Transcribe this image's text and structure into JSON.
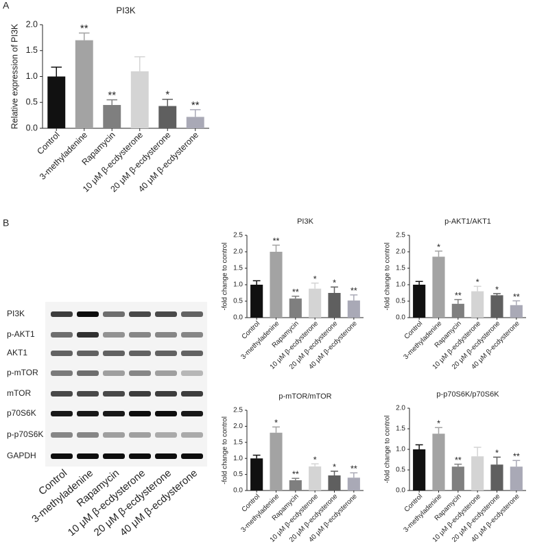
{
  "panels": [
    "A",
    "B"
  ],
  "blot": {
    "rows": [
      "PI3K",
      "p-AKT1",
      "AKT1",
      "p-mTOR",
      "mTOR",
      "p70S6K",
      "p-p70S6K",
      "GAPDH"
    ],
    "lanes": [
      "Control",
      "3-methyladenine",
      "Rapamycin",
      "10 μM β-ecdysterone",
      "20 μM β-ecdysterone",
      "40 μM β-ecdysterone"
    ]
  },
  "chart_data": [
    {
      "type": "bar",
      "title": "PI3K",
      "ylabel": "Relative expression of PI3K",
      "categories": [
        "Control",
        "3-methyladenine",
        "Rapamycin",
        "10 μM β-ecdysterone",
        "20 μM β-ecdysterone",
        "40 μM β-ecdysterone"
      ],
      "values": [
        1.0,
        1.7,
        0.45,
        1.1,
        0.43,
        0.22
      ],
      "errors": [
        0.18,
        0.14,
        0.1,
        0.28,
        0.13,
        0.14
      ],
      "significance": [
        null,
        "**",
        "**",
        null,
        "*",
        "**"
      ],
      "colors": [
        "#111111",
        "#a3a3a3",
        "#7f7f7f",
        "#d4d4d4",
        "#5f5f5f",
        "#a9a9b6"
      ],
      "ylim": [
        0,
        2.0
      ],
      "yticks": [
        {
          "value": 0,
          "label": "0.0"
        },
        {
          "value": 0.5,
          "label": "0.5"
        },
        {
          "value": 1.0,
          "label": "1.0"
        },
        {
          "value": 1.5,
          "label": "1.5"
        },
        {
          "value": 2.0,
          "label": "2.0"
        }
      ]
    },
    {
      "type": "bar",
      "title": "PI3K",
      "ylabel": "-fold change to control",
      "categories": [
        "Control",
        "3-methyladenine",
        "Rapamycin",
        "10 μM β-ecdysterone",
        "20 μM β-ecdysterone",
        "40 μM β-ecdysterone"
      ],
      "values": [
        1.0,
        2.0,
        0.58,
        0.88,
        0.75,
        0.52
      ],
      "errors": [
        0.12,
        0.2,
        0.07,
        0.17,
        0.18,
        0.17
      ],
      "significance": [
        null,
        "**",
        "**",
        "*",
        "*",
        "**"
      ],
      "colors": [
        "#111111",
        "#a3a3a3",
        "#7f7f7f",
        "#d4d4d4",
        "#5f5f5f",
        "#a9a9b6"
      ],
      "ylim": [
        0,
        2.5
      ],
      "yticks": [
        {
          "value": 0,
          "label": "0.0"
        },
        {
          "value": 0.5,
          "label": "0.5"
        },
        {
          "value": 1.0,
          "label": "1.0"
        },
        {
          "value": 1.5,
          "label": "1.5"
        },
        {
          "value": 2.0,
          "label": "2.0"
        },
        {
          "value": 2.5,
          "label": "2.5"
        }
      ]
    },
    {
      "type": "bar",
      "title": "p-AKT1/AKT1",
      "ylabel": "-fold change to control",
      "categories": [
        "Control",
        "3-methyladenine",
        "Rapamycin",
        "10 μM β-ecdysterone",
        "20 μM β-ecdysterone",
        "40 μM β-ecdysterone"
      ],
      "values": [
        1.0,
        1.85,
        0.42,
        0.8,
        0.68,
        0.38
      ],
      "errors": [
        0.1,
        0.17,
        0.13,
        0.15,
        0.05,
        0.13
      ],
      "significance": [
        null,
        "*",
        "**",
        "*",
        "*",
        "**"
      ],
      "colors": [
        "#111111",
        "#a3a3a3",
        "#7f7f7f",
        "#d4d4d4",
        "#5f5f5f",
        "#a9a9b6"
      ],
      "ylim": [
        0,
        2.5
      ],
      "yticks": [
        {
          "value": 0,
          "label": "0.0"
        },
        {
          "value": 0.5,
          "label": "0.5"
        },
        {
          "value": 1.0,
          "label": "1.0"
        },
        {
          "value": 1.5,
          "label": "1.5"
        },
        {
          "value": 2.0,
          "label": "2.0"
        },
        {
          "value": 2.5,
          "label": "2.5"
        }
      ]
    },
    {
      "type": "bar",
      "title": "p-mTOR/mTOR",
      "ylabel": "-fold change to control",
      "categories": [
        "Control",
        "3-methyladenine",
        "Rapamycin",
        "10 μM β-ecdysterone",
        "20 μM β-ecdysterone",
        "40 μM β-ecdysterone"
      ],
      "values": [
        1.0,
        1.8,
        0.32,
        0.75,
        0.47,
        0.4
      ],
      "errors": [
        0.1,
        0.18,
        0.06,
        0.08,
        0.13,
        0.15
      ],
      "significance": [
        null,
        "*",
        "**",
        "*",
        "*",
        "**"
      ],
      "colors": [
        "#111111",
        "#a3a3a3",
        "#7f7f7f",
        "#d4d4d4",
        "#5f5f5f",
        "#a9a9b6"
      ],
      "ylim": [
        0,
        2.5
      ],
      "yticks": [
        {
          "value": 0,
          "label": "0.0"
        },
        {
          "value": 0.5,
          "label": "0.5"
        },
        {
          "value": 1.0,
          "label": "1.0"
        },
        {
          "value": 1.5,
          "label": "1.5"
        },
        {
          "value": 2.0,
          "label": "2.0"
        },
        {
          "value": 2.5,
          "label": "2.5"
        }
      ]
    },
    {
      "type": "bar",
      "title": "p-p70S6K/p70S6K",
      "ylabel": "-fold change to control",
      "categories": [
        "Control",
        "3-methyladenine",
        "Rapamycin",
        "10 μM β-ecdysterone",
        "20 μM β-ecdysterone",
        "40 μM β-ecdysterone"
      ],
      "values": [
        1.0,
        1.38,
        0.58,
        0.83,
        0.63,
        0.58
      ],
      "errors": [
        0.11,
        0.15,
        0.06,
        0.22,
        0.18,
        0.15
      ],
      "significance": [
        null,
        "*",
        "**",
        null,
        "*",
        "**"
      ],
      "colors": [
        "#111111",
        "#a3a3a3",
        "#7f7f7f",
        "#d4d4d4",
        "#5f5f5f",
        "#a9a9b6"
      ],
      "ylim": [
        0,
        2.0
      ],
      "yticks": [
        {
          "value": 0,
          "label": "0.0"
        },
        {
          "value": 0.5,
          "label": "0.5"
        },
        {
          "value": 1.0,
          "label": "1.0"
        },
        {
          "value": 1.5,
          "label": "1.5"
        },
        {
          "value": 2.0,
          "label": "2.0"
        }
      ]
    }
  ]
}
